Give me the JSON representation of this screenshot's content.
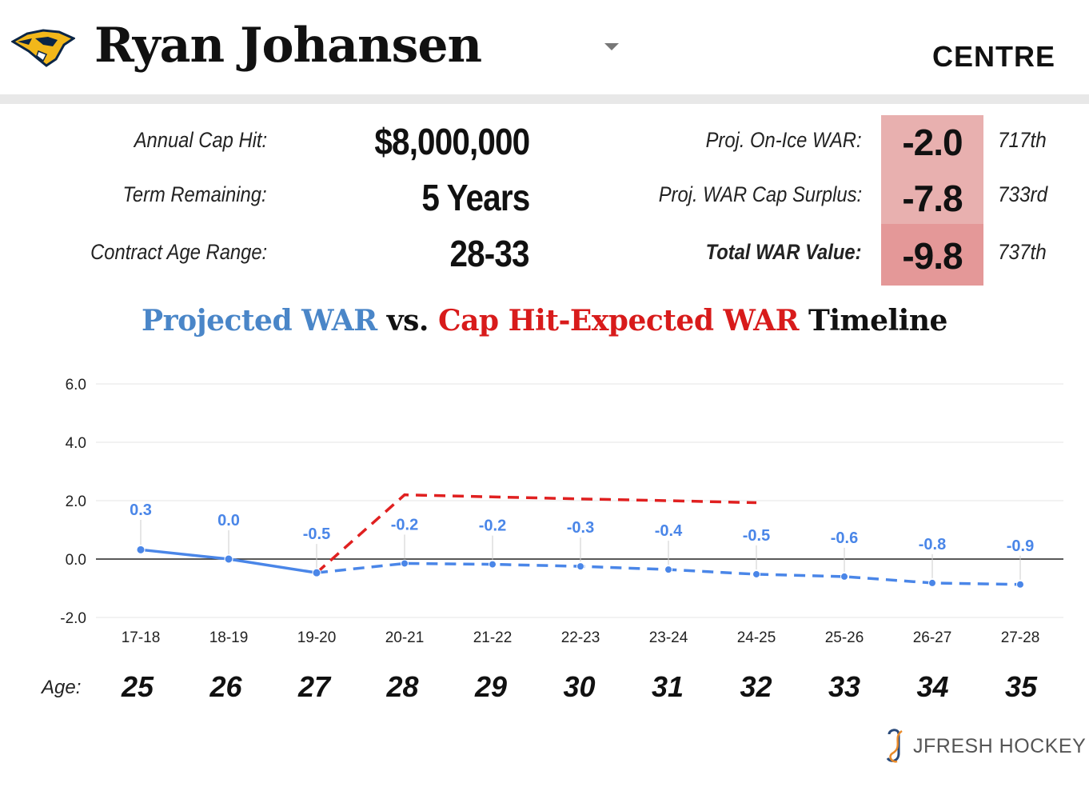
{
  "header": {
    "player_name": "Ryan Johansen",
    "position": "CENTRE",
    "logo_icon": "predators-logo-icon"
  },
  "contract": {
    "cap_hit_label": "Annual Cap Hit:",
    "cap_hit_value": "$8,000,000",
    "term_label": "Term Remaining:",
    "term_value": "5 Years",
    "age_range_label": "Contract Age Range:",
    "age_range_value": "28-33"
  },
  "war": {
    "onice_label": "Proj. On-Ice WAR:",
    "onice_value": "-2.0",
    "onice_rank": "717th",
    "surplus_label": "Proj. WAR Cap Surplus:",
    "surplus_value": "-7.8",
    "surplus_rank": "733rd",
    "total_label": "Total WAR Value:",
    "total_value": "-9.8",
    "total_rank": "737th",
    "cell_colors": [
      "#e8b0af",
      "#e8b0af",
      "#e49898"
    ]
  },
  "chart_title": {
    "part1": "Projected WAR",
    "part2": " vs. ",
    "part3": "Cap Hit-Expected WAR",
    "part4": " Timeline"
  },
  "chart_data": {
    "type": "line",
    "categories": [
      "17-18",
      "18-19",
      "19-20",
      "20-21",
      "21-22",
      "22-23",
      "23-24",
      "24-25",
      "25-26",
      "26-27",
      "27-28"
    ],
    "ylim": [
      -2.0,
      6.0
    ],
    "yticks": [
      -2.0,
      0.0,
      2.0,
      4.0,
      6.0
    ],
    "ytick_labels": [
      "-2.0",
      "0.0",
      "2.0",
      "4.0",
      "6.0"
    ],
    "grid": true,
    "series": [
      {
        "name": "Projected WAR",
        "color": "#4a86e8",
        "values": [
          0.32,
          0.0,
          -0.47,
          -0.15,
          -0.18,
          -0.25,
          -0.36,
          -0.52,
          -0.6,
          -0.82,
          -0.87
        ],
        "data_labels": [
          "0.3",
          "0.0",
          "-0.5",
          "-0.2",
          "-0.2",
          "-0.3",
          "-0.4",
          "-0.5",
          "-0.6",
          "-0.8",
          "-0.9"
        ],
        "solid_until_index": 2
      },
      {
        "name": "Cap Hit-Expected WAR",
        "color": "#e02020",
        "values": [
          null,
          null,
          -0.47,
          2.2,
          2.13,
          2.06,
          2.0,
          1.93,
          null,
          null,
          null
        ],
        "dashed": true
      }
    ]
  },
  "ages": {
    "label": "Age:",
    "values": [
      "25",
      "26",
      "27",
      "28",
      "29",
      "30",
      "31",
      "32",
      "33",
      "34",
      "35"
    ]
  },
  "brand": {
    "text": "JFRESH HOCKEY",
    "icon": "jfresh-logo-icon"
  }
}
